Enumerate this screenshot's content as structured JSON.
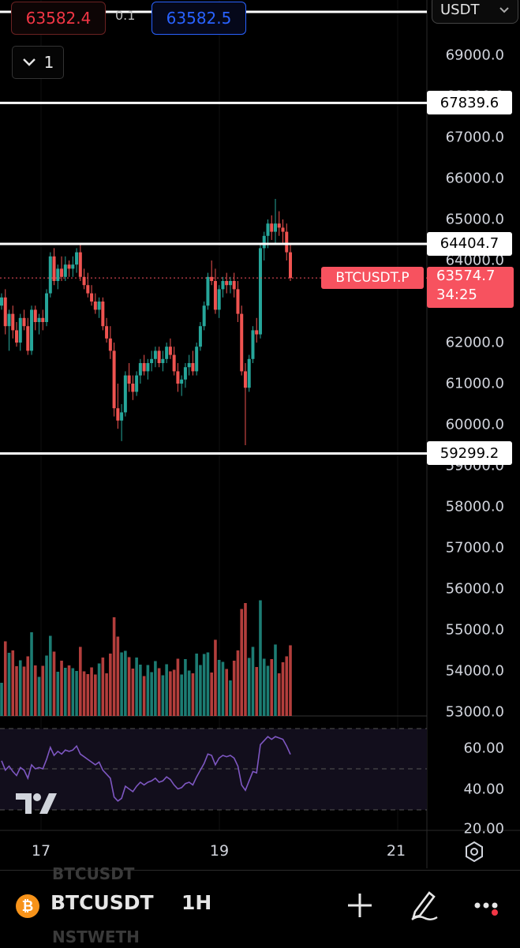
{
  "trade": {
    "sell_price": "63582.4",
    "spread": "0.1",
    "buy_price": "63582.5",
    "quantity": "1",
    "currency": "USDT"
  },
  "symbol_tag": "BTCUSDT.P",
  "current_price": "63574.7",
  "countdown": "34:25",
  "price_axis": [
    "69000.0",
    "68000.0",
    "67000.0",
    "66000.0",
    "65000.0",
    "64000.0",
    "63000.0",
    "62000.0",
    "61000.0",
    "60000.0",
    "59000.0",
    "58000.0",
    "57000.0",
    "56000.0",
    "55000.0",
    "54000.0",
    "53000.0"
  ],
  "horizontal_lines": [
    "67839.6",
    "64404.7",
    "59299.2"
  ],
  "rsi_axis": [
    "60.00",
    "40.00",
    "20.00"
  ],
  "date_axis": [
    "17",
    "19",
    "21"
  ],
  "bottom_bar": {
    "symbol": "BTCUSDT",
    "interval": "1H",
    "ghost_top": "BTCUSDT",
    "ghost_bottom": "NSTWETH"
  },
  "colors": {
    "up": "#26a69a",
    "down": "#ef5350",
    "rsi": "#7e57c2",
    "bitcoin": "#f7931a",
    "accent_red": "#f23645",
    "accent_blue": "#2962ff"
  },
  "chart_data": {
    "type": "candlestick",
    "symbol": "BTCUSDT.P",
    "interval": "1H",
    "ylim": [
      53000,
      69500
    ],
    "x_ticks": [
      "17",
      "19",
      "21"
    ],
    "candles": [
      [
        62900,
        63200,
        62800,
        63100
      ],
      [
        63100,
        63300,
        62200,
        62400
      ],
      [
        62400,
        62800,
        61800,
        62700
      ],
      [
        62700,
        62900,
        62100,
        62300
      ],
      [
        62300,
        62500,
        61900,
        62000
      ],
      [
        62000,
        62700,
        61800,
        62600
      ],
      [
        62600,
        62800,
        62300,
        62400
      ],
      [
        62400,
        62600,
        61700,
        61800
      ],
      [
        61800,
        62900,
        61700,
        62800
      ],
      [
        62800,
        62900,
        62300,
        62500
      ],
      [
        62500,
        62700,
        62200,
        62600
      ],
      [
        62600,
        62800,
        62300,
        62500
      ],
      [
        62500,
        63300,
        62400,
        63200
      ],
      [
        63200,
        64200,
        63100,
        64100
      ],
      [
        64100,
        64300,
        63400,
        63500
      ],
      [
        63500,
        63900,
        63300,
        63800
      ],
      [
        63800,
        64100,
        63500,
        63600
      ],
      [
        63600,
        64100,
        63500,
        63900
      ],
      [
        63900,
        64000,
        63600,
        63800
      ],
      [
        63800,
        64100,
        63600,
        63900
      ],
      [
        63900,
        64300,
        63700,
        64200
      ],
      [
        64200,
        64400,
        63500,
        63600
      ],
      [
        63600,
        63800,
        63300,
        63400
      ],
      [
        63400,
        63700,
        63100,
        63200
      ],
      [
        63200,
        63400,
        62900,
        63000
      ],
      [
        63000,
        63200,
        62700,
        62800
      ],
      [
        62800,
        63100,
        62600,
        63000
      ],
      [
        63000,
        63100,
        62300,
        62400
      ],
      [
        62400,
        62600,
        62000,
        62100
      ],
      [
        62100,
        62400,
        61600,
        61800
      ],
      [
        61800,
        62000,
        60200,
        60400
      ],
      [
        60400,
        61000,
        59900,
        60100
      ],
      [
        60100,
        60500,
        59600,
        60300
      ],
      [
        60300,
        61300,
        60200,
        61200
      ],
      [
        61200,
        61500,
        60800,
        61000
      ],
      [
        61000,
        61200,
        60600,
        60800
      ],
      [
        60800,
        61300,
        60700,
        61200
      ],
      [
        61200,
        61600,
        61000,
        61500
      ],
      [
        61500,
        61700,
        61200,
        61300
      ],
      [
        61300,
        61600,
        61100,
        61500
      ],
      [
        61500,
        61800,
        61300,
        61600
      ],
      [
        61600,
        61900,
        61400,
        61800
      ],
      [
        61800,
        61900,
        61400,
        61500
      ],
      [
        61500,
        61800,
        61300,
        61600
      ],
      [
        61600,
        62000,
        61500,
        61900
      ],
      [
        61900,
        62100,
        61600,
        61700
      ],
      [
        61700,
        61900,
        61200,
        61300
      ],
      [
        61300,
        61500,
        60800,
        61000
      ],
      [
        61000,
        61200,
        60700,
        61100
      ],
      [
        61100,
        61500,
        60900,
        61400
      ],
      [
        61400,
        61700,
        61200,
        61500
      ],
      [
        61500,
        61800,
        61200,
        61300
      ],
      [
        61300,
        62000,
        61200,
        61900
      ],
      [
        61900,
        62500,
        61800,
        62400
      ],
      [
        62400,
        63000,
        62300,
        62900
      ],
      [
        62900,
        63700,
        62800,
        63600
      ],
      [
        63600,
        64000,
        63400,
        63500
      ],
      [
        63500,
        63800,
        62700,
        62800
      ],
      [
        62800,
        63400,
        62600,
        63300
      ],
      [
        63300,
        63600,
        63100,
        63500
      ],
      [
        63500,
        63700,
        63200,
        63400
      ],
      [
        63400,
        63600,
        63200,
        63500
      ],
      [
        63500,
        63700,
        63100,
        63300
      ],
      [
        63300,
        63500,
        62500,
        62700
      ],
      [
        62700,
        62900,
        61200,
        61300
      ],
      [
        61300,
        61500,
        59500,
        60900
      ],
      [
        60900,
        61700,
        60800,
        61600
      ],
      [
        61600,
        62400,
        61500,
        62300
      ],
      [
        62300,
        62600,
        62000,
        62200
      ],
      [
        62200,
        64400,
        62100,
        64300
      ],
      [
        64300,
        64700,
        64000,
        64600
      ],
      [
        64600,
        65000,
        64300,
        64900
      ],
      [
        64900,
        65100,
        64500,
        64700
      ],
      [
        64700,
        65500,
        64400,
        64900
      ],
      [
        64900,
        65200,
        64600,
        64800
      ],
      [
        64800,
        65000,
        64400,
        64700
      ],
      [
        64700,
        64900,
        64000,
        64200
      ],
      [
        64200,
        64400,
        63500,
        63575
      ]
    ],
    "volume_note": "volume bars per candle, same colors as candles",
    "rsi": {
      "levels": [
        70,
        50,
        30
      ],
      "labels": [
        "60.00",
        "40.00",
        "20.00"
      ]
    },
    "price_lines": [
      67839.6,
      64404.7,
      59299.2
    ],
    "last_price": 63574.7
  }
}
